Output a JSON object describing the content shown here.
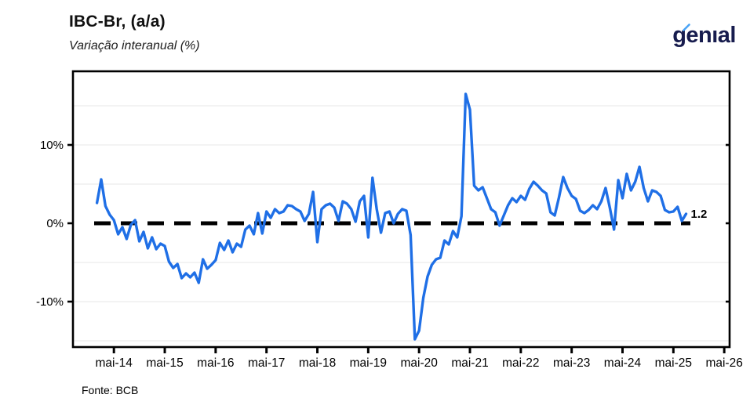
{
  "header": {
    "title": "IBC-Br, (a/a)",
    "subtitle": "Variação interanual (%)",
    "logo": {
      "text": "genıal",
      "color": "#171c4e",
      "accent_color": "#4aa3f5"
    }
  },
  "footer": {
    "source": "Fonte: BCB"
  },
  "chart_data": {
    "type": "line",
    "title": "IBC-Br, (a/a)",
    "subtitle": "Variação interanual (%)",
    "xlabel": "",
    "ylabel": "",
    "ylim": [
      -15.8,
      19.4
    ],
    "grid": "horizontal, every 5 pct, light gray",
    "legend": "none",
    "line_color": "#1f6fe6",
    "zero_line": {
      "value": 0,
      "style": "dashed",
      "color": "#000000"
    },
    "yticks": [
      {
        "value": 10,
        "label": "10%"
      },
      {
        "value": 0,
        "label": "0%"
      },
      {
        "value": -10,
        "label": "-10%"
      }
    ],
    "gridline_values": [
      15,
      10,
      5,
      -5,
      -10,
      -15
    ],
    "xticks": [
      "mai-14",
      "mai-15",
      "mai-16",
      "mai-17",
      "mai-18",
      "mai-19",
      "mai-20",
      "mai-21",
      "mai-22",
      "mai-23",
      "mai-24",
      "mai-25",
      "mai-26"
    ],
    "end_label": "1.2",
    "series": [
      {
        "name": "IBC-Br variação interanual (%)",
        "x_start": "2014-01",
        "x_step_months": 1,
        "values": [
          2.6,
          5.6,
          2.2,
          1.1,
          0.4,
          -1.4,
          -0.5,
          -2.0,
          -0.2,
          0.4,
          -2.3,
          -1.1,
          -3.2,
          -1.8,
          -3.3,
          -2.6,
          -2.9,
          -4.9,
          -5.7,
          -5.2,
          -7.0,
          -6.4,
          -6.9,
          -6.3,
          -7.6,
          -4.6,
          -5.8,
          -5.3,
          -4.7,
          -2.5,
          -3.4,
          -2.2,
          -3.7,
          -2.6,
          -3.0,
          -0.8,
          -0.3,
          -1.4,
          1.3,
          -1.3,
          1.5,
          0.7,
          1.8,
          1.3,
          1.5,
          2.3,
          2.2,
          1.8,
          1.5,
          0.3,
          1.2,
          4.0,
          -2.4,
          1.8,
          2.3,
          2.5,
          2.0,
          0.3,
          2.8,
          2.5,
          1.8,
          0.2,
          2.8,
          3.5,
          -1.8,
          5.8,
          1.8,
          -1.2,
          1.3,
          1.5,
          0.0,
          1.2,
          1.8,
          1.6,
          -1.5,
          -14.8,
          -13.7,
          -9.5,
          -6.8,
          -5.3,
          -4.6,
          -4.4,
          -2.2,
          -2.7,
          -1.0,
          -1.8,
          0.9,
          16.5,
          14.5,
          4.8,
          4.2,
          4.6,
          3.2,
          1.8,
          1.4,
          -0.3,
          1.0,
          2.3,
          3.2,
          2.7,
          3.5,
          3.0,
          4.4,
          5.3,
          4.8,
          4.2,
          3.8,
          1.4,
          1.0,
          3.3,
          5.9,
          4.5,
          3.5,
          3.1,
          1.6,
          1.3,
          1.7,
          2.3,
          1.8,
          2.8,
          4.5,
          2.0,
          -0.8,
          5.5,
          3.2,
          6.3,
          4.2,
          5.3,
          7.2,
          4.5,
          2.8,
          4.2,
          4.0,
          3.5,
          1.7,
          1.4,
          1.5,
          2.1,
          0.3,
          1.2
        ]
      }
    ]
  }
}
